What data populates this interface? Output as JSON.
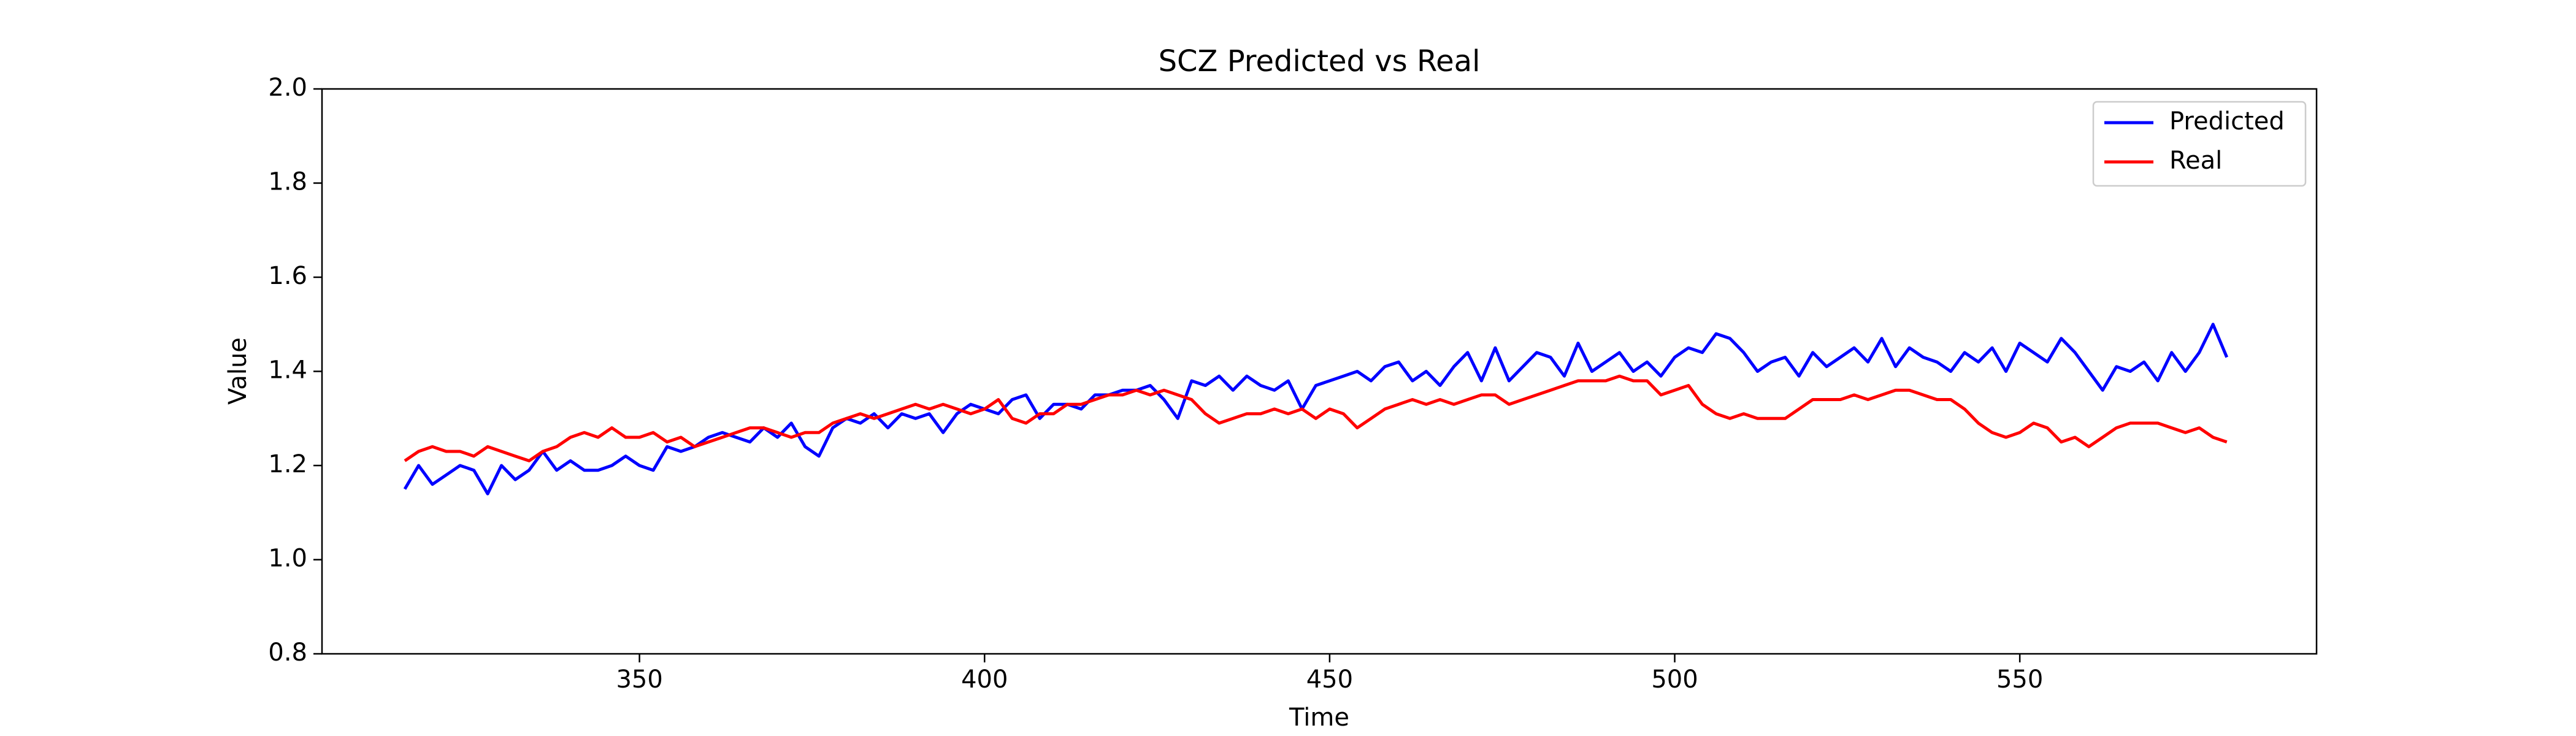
{
  "chart_data": {
    "type": "line",
    "title": "SCZ Predicted vs Real",
    "xlabel": "Time",
    "ylabel": "Value",
    "x": [
      316,
      318,
      320,
      322,
      324,
      326,
      328,
      330,
      332,
      334,
      336,
      338,
      340,
      342,
      344,
      346,
      348,
      350,
      352,
      354,
      356,
      358,
      360,
      362,
      364,
      366,
      368,
      370,
      372,
      374,
      376,
      378,
      380,
      382,
      384,
      386,
      388,
      390,
      392,
      394,
      396,
      398,
      400,
      402,
      404,
      406,
      408,
      410,
      412,
      414,
      416,
      418,
      420,
      422,
      424,
      426,
      428,
      430,
      432,
      434,
      436,
      438,
      440,
      442,
      444,
      446,
      448,
      450,
      452,
      454,
      456,
      458,
      460,
      462,
      464,
      466,
      468,
      470,
      472,
      474,
      476,
      478,
      480,
      482,
      484,
      486,
      488,
      490,
      492,
      494,
      496,
      498,
      500,
      502,
      504,
      506,
      508,
      510,
      512,
      514,
      516,
      518,
      520,
      522,
      524,
      526,
      528,
      530,
      532,
      534,
      536,
      538,
      540,
      542,
      544,
      546,
      548,
      550,
      552,
      554,
      556,
      558,
      560,
      562,
      564,
      566,
      568,
      570,
      572,
      574,
      576,
      578,
      580
    ],
    "series": [
      {
        "name": "Predicted",
        "color": "#0000ff",
        "values": [
          1.15,
          1.2,
          1.16,
          1.18,
          1.2,
          1.19,
          1.14,
          1.2,
          1.17,
          1.19,
          1.23,
          1.19,
          1.21,
          1.19,
          1.19,
          1.2,
          1.22,
          1.2,
          1.19,
          1.24,
          1.23,
          1.24,
          1.26,
          1.27,
          1.26,
          1.25,
          1.28,
          1.26,
          1.29,
          1.24,
          1.22,
          1.28,
          1.3,
          1.29,
          1.31,
          1.28,
          1.31,
          1.3,
          1.31,
          1.27,
          1.31,
          1.33,
          1.32,
          1.31,
          1.34,
          1.35,
          1.3,
          1.33,
          1.33,
          1.32,
          1.35,
          1.35,
          1.36,
          1.36,
          1.37,
          1.34,
          1.3,
          1.38,
          1.37,
          1.39,
          1.36,
          1.39,
          1.37,
          1.36,
          1.38,
          1.32,
          1.37,
          1.38,
          1.39,
          1.4,
          1.38,
          1.41,
          1.42,
          1.38,
          1.4,
          1.37,
          1.41,
          1.44,
          1.38,
          1.45,
          1.38,
          1.41,
          1.44,
          1.43,
          1.39,
          1.46,
          1.4,
          1.42,
          1.44,
          1.4,
          1.42,
          1.39,
          1.43,
          1.45,
          1.44,
          1.48,
          1.47,
          1.44,
          1.4,
          1.42,
          1.43,
          1.39,
          1.44,
          1.41,
          1.43,
          1.45,
          1.42,
          1.47,
          1.41,
          1.45,
          1.43,
          1.42,
          1.4,
          1.44,
          1.42,
          1.45,
          1.4,
          1.46,
          1.44,
          1.42,
          1.47,
          1.44,
          1.4,
          1.36,
          1.41,
          1.4,
          1.42,
          1.38,
          1.44,
          1.4,
          1.44,
          1.5,
          1.43
        ]
      },
      {
        "name": "Real",
        "color": "#ff0000",
        "values": [
          1.21,
          1.23,
          1.24,
          1.23,
          1.23,
          1.22,
          1.24,
          1.23,
          1.22,
          1.21,
          1.23,
          1.24,
          1.26,
          1.27,
          1.26,
          1.28,
          1.26,
          1.26,
          1.27,
          1.25,
          1.26,
          1.24,
          1.25,
          1.26,
          1.27,
          1.28,
          1.28,
          1.27,
          1.26,
          1.27,
          1.27,
          1.29,
          1.3,
          1.31,
          1.3,
          1.31,
          1.32,
          1.33,
          1.32,
          1.33,
          1.32,
          1.31,
          1.32,
          1.34,
          1.3,
          1.29,
          1.31,
          1.31,
          1.33,
          1.33,
          1.34,
          1.35,
          1.35,
          1.36,
          1.35,
          1.36,
          1.35,
          1.34,
          1.31,
          1.29,
          1.3,
          1.31,
          1.31,
          1.32,
          1.31,
          1.32,
          1.3,
          1.32,
          1.31,
          1.28,
          1.3,
          1.32,
          1.33,
          1.34,
          1.33,
          1.34,
          1.33,
          1.34,
          1.35,
          1.35,
          1.33,
          1.34,
          1.35,
          1.36,
          1.37,
          1.38,
          1.38,
          1.38,
          1.39,
          1.38,
          1.38,
          1.35,
          1.36,
          1.37,
          1.33,
          1.31,
          1.3,
          1.31,
          1.3,
          1.3,
          1.3,
          1.32,
          1.34,
          1.34,
          1.34,
          1.35,
          1.34,
          1.35,
          1.36,
          1.36,
          1.35,
          1.34,
          1.34,
          1.32,
          1.29,
          1.27,
          1.26,
          1.27,
          1.29,
          1.28,
          1.25,
          1.26,
          1.24,
          1.26,
          1.28,
          1.29,
          1.29,
          1.29,
          1.28,
          1.27,
          1.28,
          1.26,
          1.25
        ]
      }
    ],
    "xlim": [
      304,
      593
    ],
    "ylim": [
      0.8,
      2.0
    ],
    "xticks": [
      350,
      400,
      450,
      500,
      550
    ],
    "yticks": [
      0.8,
      {
        "value": 1,
        "label": "1.0"
      },
      1.2,
      1.4,
      1.6,
      1.8,
      {
        "value": 2,
        "label": "2.0"
      }
    ],
    "legend": "upper right"
  }
}
